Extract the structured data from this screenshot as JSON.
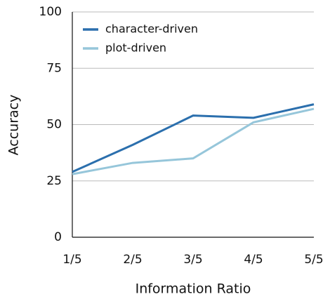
{
  "chart_data": {
    "type": "line",
    "x_label": "Information Ratio",
    "y_label": "Accuracy",
    "categories": [
      "1/5",
      "2/5",
      "3/5",
      "4/5",
      "5/5"
    ],
    "series": [
      {
        "name": "character-driven",
        "color": "#2b6fad",
        "values": [
          29,
          41,
          54,
          53,
          59
        ]
      },
      {
        "name": "plot-driven",
        "color": "#96c6da",
        "values": [
          28,
          33,
          35,
          51,
          57
        ]
      }
    ],
    "ylim": [
      0,
      100
    ],
    "yticks": [
      0,
      25,
      50,
      75,
      100
    ],
    "grid": true,
    "legend": "upper left"
  }
}
